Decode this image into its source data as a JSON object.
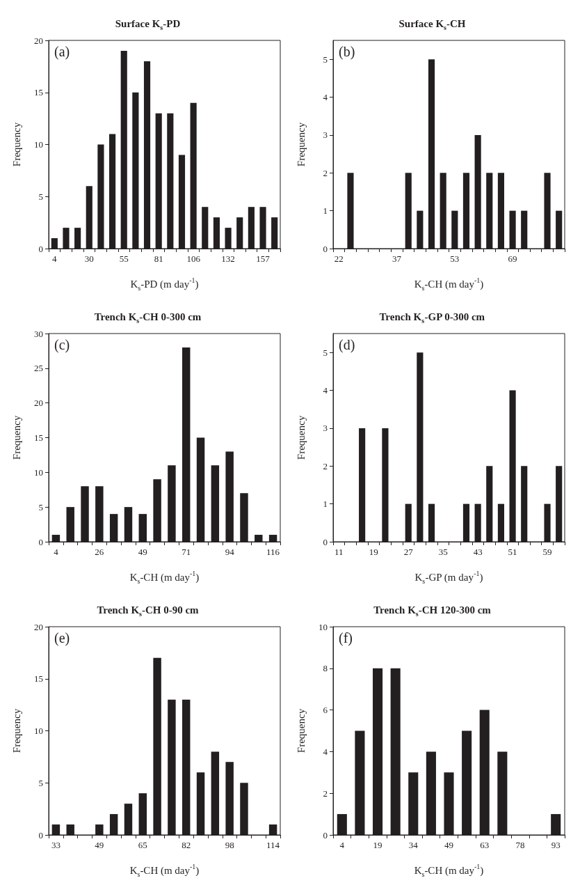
{
  "chart_data": [
    {
      "type": "bar",
      "title": "Surface K$_{s}$-PD",
      "xlabel": "K$_{s}$-PD (m day$^{-1}$)",
      "ylabel": "Frequency",
      "annotations": [
        "(a)"
      ],
      "color": "#231f20",
      "ylim": [
        0,
        20
      ],
      "yticks": [
        0,
        5,
        10,
        15,
        20
      ],
      "categories": [
        "4",
        null,
        null,
        "30",
        null,
        null,
        "55",
        null,
        null,
        "81",
        null,
        null,
        "106",
        null,
        null,
        "132",
        null,
        null,
        "157",
        null
      ],
      "values": [
        1,
        2,
        2,
        6,
        10,
        11,
        19,
        15,
        18,
        13,
        13,
        9,
        14,
        4,
        3,
        2,
        3,
        4,
        4,
        3
      ]
    },
    {
      "type": "bar",
      "title": "Surface K$_{s}$-CH",
      "xlabel": "K$_{s}$-CH (m day$^{-1}$)",
      "ylabel": "Frequency",
      "annotations": [
        "(b)"
      ],
      "color": "#231f20",
      "ylim": [
        0,
        5.5
      ],
      "yticks": [
        0,
        1,
        2,
        3,
        4,
        5
      ],
      "categories": [
        "22",
        null,
        null,
        null,
        null,
        "37",
        null,
        null,
        null,
        null,
        "53",
        null,
        null,
        null,
        null,
        "69",
        null,
        null,
        null,
        null
      ],
      "values": [
        0,
        2,
        0,
        0,
        0,
        0,
        2,
        1,
        5,
        2,
        1,
        2,
        3,
        2,
        2,
        1,
        1,
        0,
        2,
        1
      ]
    },
    {
      "type": "bar",
      "title": "Trench K$_{s}$-CH 0-300 cm",
      "xlabel": "K$_{s}$-CH (m day$^{-1}$)",
      "ylabel": "Frequency",
      "annotations": [
        "(c)"
      ],
      "color": "#231f20",
      "ylim": [
        0,
        30
      ],
      "yticks": [
        0,
        5,
        10,
        15,
        20,
        25,
        30
      ],
      "categories": [
        "4",
        null,
        null,
        "26",
        null,
        null,
        "49",
        null,
        null,
        "71",
        null,
        null,
        "94",
        null,
        null,
        "116"
      ],
      "values": [
        1,
        5,
        8,
        8,
        4,
        5,
        4,
        9,
        11,
        28,
        15,
        11,
        13,
        7,
        1,
        1
      ]
    },
    {
      "type": "bar",
      "title": "Trench K$_{s}$-GP 0-300 cm",
      "xlabel": "K$_{s}$-GP (m day$^{-1}$)",
      "ylabel": "Frequency",
      "annotations": [
        "(d)"
      ],
      "color": "#231f20",
      "ylim": [
        0,
        5.5
      ],
      "yticks": [
        0,
        1,
        2,
        3,
        4,
        5
      ],
      "categories": [
        "11",
        null,
        null,
        "19",
        null,
        null,
        "27",
        null,
        null,
        "35",
        null,
        null,
        "43",
        null,
        null,
        "51",
        null,
        null,
        "59",
        null
      ],
      "values": [
        0,
        0,
        3,
        0,
        3,
        0,
        1,
        5,
        1,
        0,
        0,
        1,
        1,
        2,
        1,
        4,
        2,
        0,
        1,
        2
      ]
    },
    {
      "type": "bar",
      "title": "Trench K$_{s}$-CH 0-90 cm",
      "xlabel": "K$_{s}$-CH (m day$^{-1}$)",
      "ylabel": "Frequency",
      "annotations": [
        "(e)"
      ],
      "color": "#231f20",
      "ylim": [
        0,
        20
      ],
      "yticks": [
        0,
        5,
        10,
        15,
        20
      ],
      "categories": [
        "33",
        null,
        null,
        "49",
        null,
        null,
        "65",
        null,
        null,
        "82",
        null,
        null,
        "98",
        null,
        null,
        "114"
      ],
      "values": [
        1,
        1,
        0,
        1,
        2,
        3,
        4,
        17,
        13,
        13,
        6,
        8,
        7,
        5,
        0,
        1
      ]
    },
    {
      "type": "bar",
      "title": "Trench K$_{s}$-CH 120-300 cm",
      "xlabel": "K$_{s}$-CH (m day$^{-1}$)",
      "ylabel": "Frequency",
      "annotations": [
        "(f)"
      ],
      "color": "#231f20",
      "ylim": [
        0,
        10
      ],
      "yticks": [
        0,
        2,
        4,
        6,
        8,
        10
      ],
      "categories": [
        "4",
        null,
        "19",
        null,
        "34",
        null,
        "49",
        null,
        "63",
        null,
        "78",
        null,
        "93"
      ],
      "values": [
        1,
        5,
        8,
        8,
        3,
        4,
        3,
        5,
        6,
        4,
        0,
        0,
        1
      ]
    }
  ]
}
